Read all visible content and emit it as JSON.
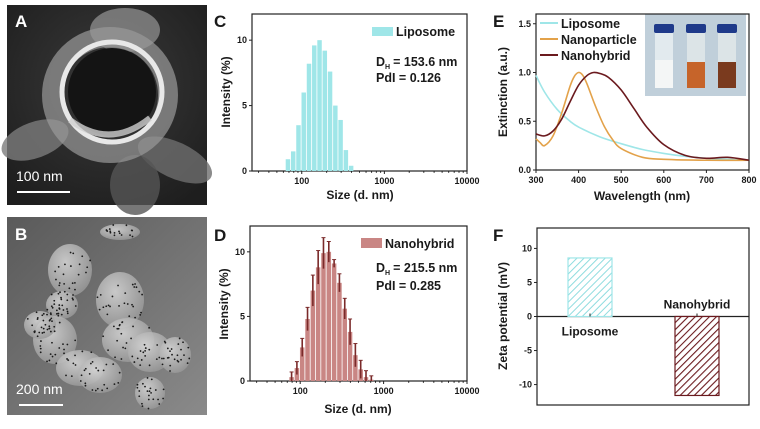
{
  "panels": {
    "A": {
      "letter": "A",
      "scale_bar": "100 nm"
    },
    "B": {
      "letter": "B",
      "scale_bar": "200 nm"
    },
    "C": {
      "letter": "C"
    },
    "D": {
      "letter": "D"
    },
    "E": {
      "letter": "E"
    },
    "F": {
      "letter": "F"
    }
  },
  "colors": {
    "liposome": "#9fe6e8",
    "nanoparticle": "#e3a24a",
    "nanohybrid": "#6b1a1e",
    "nanohybrid_bar": "#c98684",
    "errorbar": "#7a2a2a"
  },
  "chart_data": [
    {
      "id": "C",
      "type": "bar",
      "xscale": "log",
      "xlabel": "Size (d. nm)",
      "ylabel": "Intensity (%)",
      "xlim": [
        25,
        10000
      ],
      "ylim": [
        0,
        12
      ],
      "xticks": [
        100,
        1000,
        10000
      ],
      "xtick_labels": [
        "100",
        "1000",
        "10000"
      ],
      "yticks": [
        0,
        5,
        10
      ],
      "ytick_labels": [
        "0",
        "5",
        "10"
      ],
      "legend": {
        "label": "Liposome",
        "placement": "top-right"
      },
      "annotation": {
        "dh_main": "D",
        "dh_sub": "H",
        "dh_value": "= 153.6 nm",
        "pdi": "PdI = 0.126"
      },
      "series": [
        {
          "name": "Liposome",
          "x": [
            68.06,
            78.82,
            91.28,
            105.7,
            122.4,
            141.8,
            164.2,
            190.1,
            220.2,
            255.0,
            295.3,
            342.0,
            396.1
          ],
          "values": [
            0.9,
            1.5,
            3.5,
            6.0,
            8.2,
            9.6,
            10.0,
            9.2,
            7.6,
            5.0,
            3.9,
            1.6,
            0.4
          ]
        }
      ]
    },
    {
      "id": "D",
      "type": "bar",
      "xscale": "log",
      "xlabel": "Size (d. nm)",
      "ylabel": "Intensity (%)",
      "xlim": [
        25,
        10000
      ],
      "ylim": [
        0,
        12
      ],
      "xticks": [
        100,
        1000,
        10000
      ],
      "xtick_labels": [
        "100",
        "1000",
        "10000"
      ],
      "yticks": [
        0,
        5,
        10
      ],
      "ytick_labels": [
        "0",
        "5",
        "10"
      ],
      "legend": {
        "label": "Nanohybrid",
        "placement": "top-right"
      },
      "annotation": {
        "dh_main": "D",
        "dh_sub": "H",
        "dh_value": "= 215.5 nm",
        "pdi": "PdI = 0.285"
      },
      "series": [
        {
          "name": "Nanohybrid",
          "x": [
            78.82,
            91.28,
            105.7,
            122.4,
            141.8,
            164.2,
            190.1,
            220.2,
            255.0,
            295.3,
            342.0,
            396.1,
            458.7,
            531.2,
            615.1,
            712.4
          ],
          "values": [
            0.3,
            1.0,
            2.6,
            4.8,
            7.0,
            8.8,
            9.9,
            10.0,
            9.1,
            7.6,
            5.6,
            3.8,
            2.0,
            0.9,
            0.3,
            0.1
          ],
          "errors": [
            0.4,
            0.5,
            0.7,
            0.9,
            1.2,
            1.3,
            1.2,
            0.8,
            0.3,
            0.7,
            0.8,
            1.0,
            0.9,
            0.7,
            0.5,
            0.3
          ]
        }
      ]
    },
    {
      "id": "E",
      "type": "line",
      "xlabel": "Wavelength (nm)",
      "ylabel": "Extinction (a.u.)",
      "xlim": [
        300,
        800
      ],
      "ylim": [
        0,
        1.6
      ],
      "xticks": [
        300,
        400,
        500,
        600,
        700,
        800
      ],
      "xtick_labels": [
        "300",
        "400",
        "500",
        "600",
        "700",
        "800"
      ],
      "yticks": [
        0,
        0.5,
        1.0,
        1.5
      ],
      "ytick_labels": [
        "0.0",
        "0.5",
        "1.0",
        "1.5"
      ],
      "legend_placement": "top-left",
      "inset": "photo of three vials: liposome (white), nanoparticle (orange), nanohybrid (brown)",
      "series": [
        {
          "name": "Liposome",
          "x": [
            300,
            320,
            350,
            380,
            400,
            450,
            500,
            550,
            600,
            650,
            700,
            750,
            800
          ],
          "values": [
            0.97,
            0.8,
            0.62,
            0.5,
            0.44,
            0.34,
            0.27,
            0.21,
            0.17,
            0.14,
            0.12,
            0.11,
            0.1
          ]
        },
        {
          "name": "Nanoparticle",
          "x": [
            300,
            310,
            320,
            340,
            360,
            380,
            390,
            400,
            410,
            420,
            440,
            460,
            480,
            500,
            550,
            600,
            700,
            800
          ],
          "values": [
            0.32,
            0.28,
            0.25,
            0.35,
            0.58,
            0.86,
            0.96,
            1.0,
            0.97,
            0.88,
            0.65,
            0.45,
            0.31,
            0.22,
            0.13,
            0.11,
            0.1,
            0.1
          ]
        },
        {
          "name": "Nanohybrid",
          "x": [
            300,
            320,
            340,
            360,
            380,
            400,
            420,
            435,
            450,
            470,
            500,
            530,
            560,
            600,
            650,
            700,
            750,
            800
          ],
          "values": [
            0.37,
            0.35,
            0.4,
            0.52,
            0.7,
            0.87,
            0.97,
            1.0,
            0.99,
            0.95,
            0.82,
            0.63,
            0.44,
            0.26,
            0.15,
            0.12,
            0.13,
            0.1
          ]
        }
      ]
    },
    {
      "id": "F",
      "type": "bar",
      "ylabel": "Zeta potential (mV)",
      "ylim": [
        -13,
        13
      ],
      "yticks": [
        -10,
        -5,
        0,
        5,
        10
      ],
      "ytick_labels": [
        "-10",
        "-5",
        "0",
        "5",
        "10"
      ],
      "categories": [
        "Liposome",
        "Nanohybrid"
      ],
      "values": [
        8.6,
        -11.6
      ],
      "fill": "hatched"
    }
  ]
}
